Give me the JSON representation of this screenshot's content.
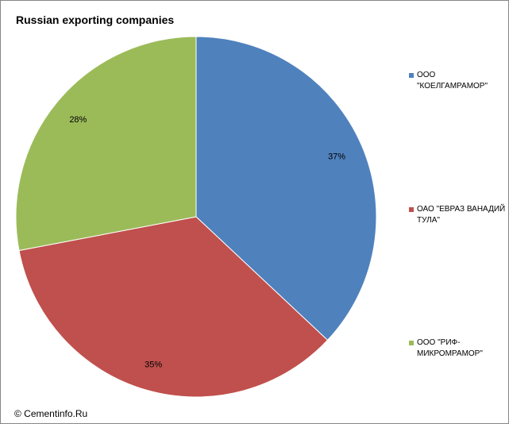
{
  "chart_data": {
    "type": "pie",
    "title": "Russian exporting companies",
    "legend_position": "right",
    "categories": [
      "ООО \"КОЕЛГАМРАМОР\"",
      "ОАО \"ЕВРАЗ ВАНАДИЙ ТУЛА\"",
      "ООО \"РИФ-МИКРОМРАМОР\""
    ],
    "values": [
      37,
      35,
      28
    ],
    "labels": [
      "37%",
      "35%",
      "28%"
    ],
    "colors": [
      "#4f81bd",
      "#c0504d",
      "#9bbb59"
    ]
  },
  "legend": {
    "items": [
      {
        "line1": "ООО \"КОЕЛГАМРАМОР\"",
        "line2": ""
      },
      {
        "line1": "ОАО \"ЕВРАЗ ВАНАДИЙ",
        "line2": "ТУЛА\""
      },
      {
        "line1": "ООО \"РИФ-",
        "line2": "МИКРОМРАМОР\""
      }
    ]
  },
  "footer": {
    "copyright": "© Cementinfo.Ru"
  }
}
